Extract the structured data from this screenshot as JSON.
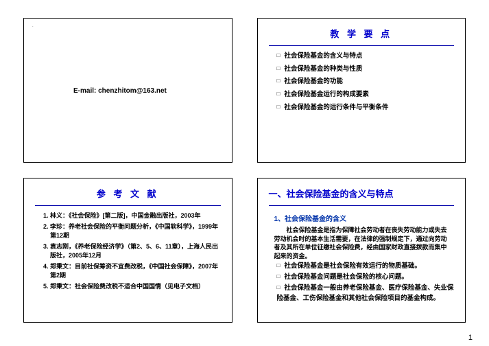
{
  "pageNumber": "1",
  "slide1": {
    "emailLabel": "E-mail: chenzhitom@163.net"
  },
  "slide2": {
    "title": "教 学 要 点",
    "bullets": [
      "社会保险基金的含义与特点",
      "社会保险基金的种类与性质",
      "社会保险基金的功能",
      "社会保险基金运行的构成要素",
      "社会保险基金的运行条件与平衡条件"
    ]
  },
  "slide3": {
    "title": "参 考 文 献",
    "refs": [
      "林义：《社会保险》[第二版]，中国金融出版社，2003年",
      "李珍：养老社会保险的平衡问题分析，《中国软科学》，1999年第12期",
      "袁志刚，《养老保险经济学》（第2、5、6、11章），上海人民出版社，2005年12月",
      "郑秉文：目前社保筹资不宜费改税，《中国社会保障》，2007年第2期",
      "郑秉文：社会保险费改税不适合中国国情（见电子文档）"
    ]
  },
  "slide4": {
    "title": "一、社会保险基金的含义与特点",
    "subtitle": "1、社会保险基金的含义",
    "para": "社会保险基金是指为保障社会劳动者在丧失劳动能力或失去劳动机会时的基本生活需要，在法律的强制规定下，通过向劳动者及其所在单位征缴社会保险费，经由国家财政直接拨款而集中起来的资金。",
    "bullets": [
      "社会保险基金是社会保险有效运行的物质基础。",
      "社会保险基金问题是社会保险的核心问题。",
      "社会保险基金一般由养老保险基金、医疗保险基金、失业保险基金、工伤保险基金和其他社会保险项目的基金构成。"
    ]
  }
}
